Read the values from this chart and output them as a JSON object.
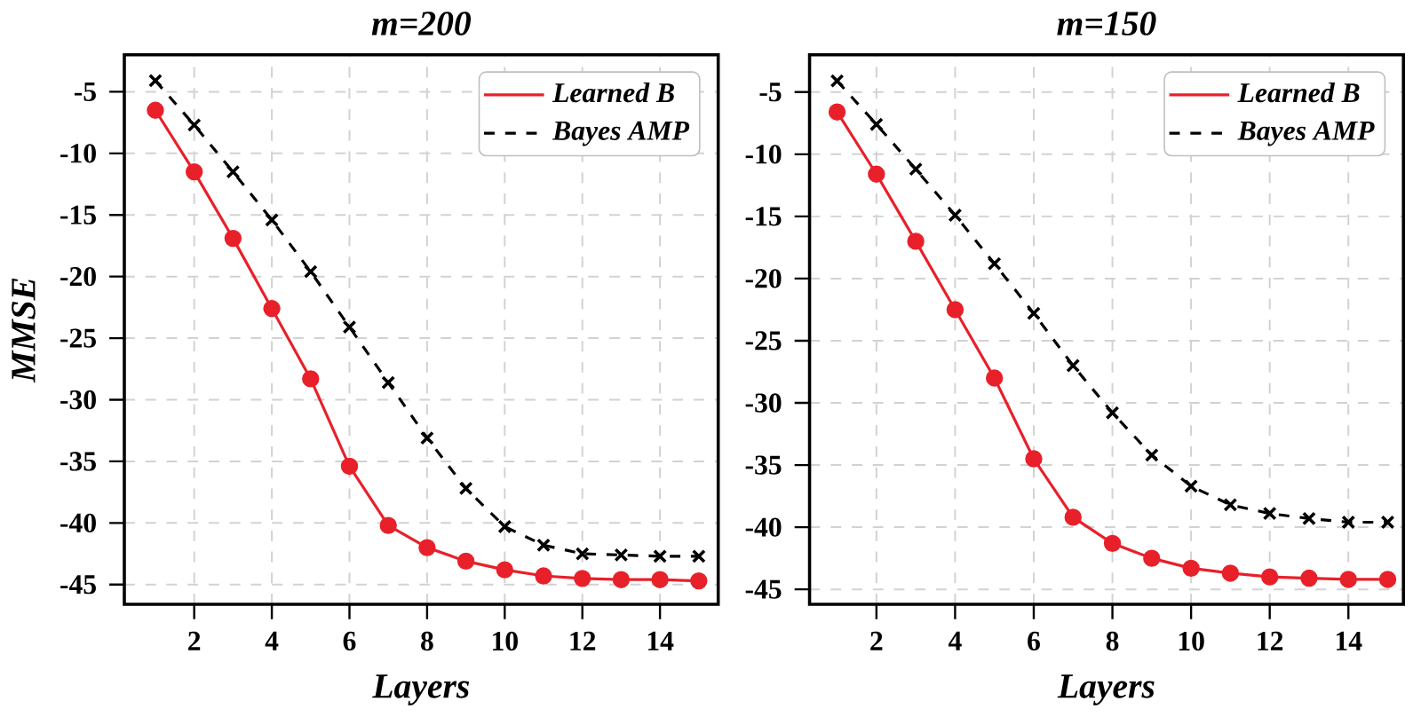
{
  "chart_data": [
    {
      "type": "line",
      "title": "m=200",
      "xlabel": "Layers",
      "ylabel": "MMSE",
      "x": [
        1,
        2,
        3,
        4,
        5,
        6,
        7,
        8,
        9,
        10,
        11,
        12,
        13,
        14,
        15
      ],
      "series": [
        {
          "name": "Learned B",
          "color": "#e8202a",
          "marker": "circle",
          "line_style": "solid",
          "values": [
            -6.5,
            -11.5,
            -16.9,
            -22.6,
            -28.3,
            -35.4,
            -40.2,
            -42.0,
            -43.1,
            -43.8,
            -44.3,
            -44.5,
            -44.6,
            -44.6,
            -44.7
          ]
        },
        {
          "name": "Bayes AMP",
          "color": "#000000",
          "marker": "cross",
          "line_style": "dashed",
          "values": [
            -4.1,
            -7.7,
            -11.5,
            -15.4,
            -19.6,
            -24.1,
            -28.6,
            -33.1,
            -37.2,
            -40.3,
            -41.8,
            -42.5,
            -42.6,
            -42.7,
            -42.7
          ]
        }
      ],
      "xlim": [
        0.2,
        15.5
      ],
      "ylim": [
        -46.6,
        -2
      ],
      "xticks": [
        2,
        4,
        6,
        8,
        10,
        12,
        14
      ],
      "yticks": [
        -5,
        -10,
        -15,
        -20,
        -25,
        -30,
        -35,
        -40,
        -45
      ],
      "grid": true,
      "legend": "top right"
    },
    {
      "type": "line",
      "title": "m=150",
      "xlabel": "Layers",
      "x": [
        1,
        2,
        3,
        4,
        5,
        6,
        7,
        8,
        9,
        10,
        11,
        12,
        13,
        14,
        15
      ],
      "series": [
        {
          "name": "Learned B",
          "color": "#e8202a",
          "marker": "circle",
          "line_style": "solid",
          "values": [
            -6.6,
            -11.6,
            -17.0,
            -22.5,
            -28.0,
            -34.5,
            -39.2,
            -41.3,
            -42.5,
            -43.3,
            -43.7,
            -44.0,
            -44.1,
            -44.2,
            -44.2
          ]
        },
        {
          "name": "Bayes AMP",
          "color": "#000000",
          "marker": "cross",
          "line_style": "dashed",
          "values": [
            -4.1,
            -7.6,
            -11.2,
            -14.9,
            -18.8,
            -22.8,
            -27.0,
            -30.8,
            -34.2,
            -36.7,
            -38.2,
            -38.9,
            -39.3,
            -39.6,
            -39.6
          ]
        }
      ],
      "xlim": [
        0.3,
        15.4
      ],
      "ylim": [
        -46.2,
        -2
      ],
      "xticks": [
        2,
        4,
        6,
        8,
        10,
        12,
        14
      ],
      "yticks": [
        -5,
        -10,
        -15,
        -20,
        -25,
        -30,
        -35,
        -40,
        -45
      ],
      "grid": true,
      "legend": "top right"
    }
  ]
}
